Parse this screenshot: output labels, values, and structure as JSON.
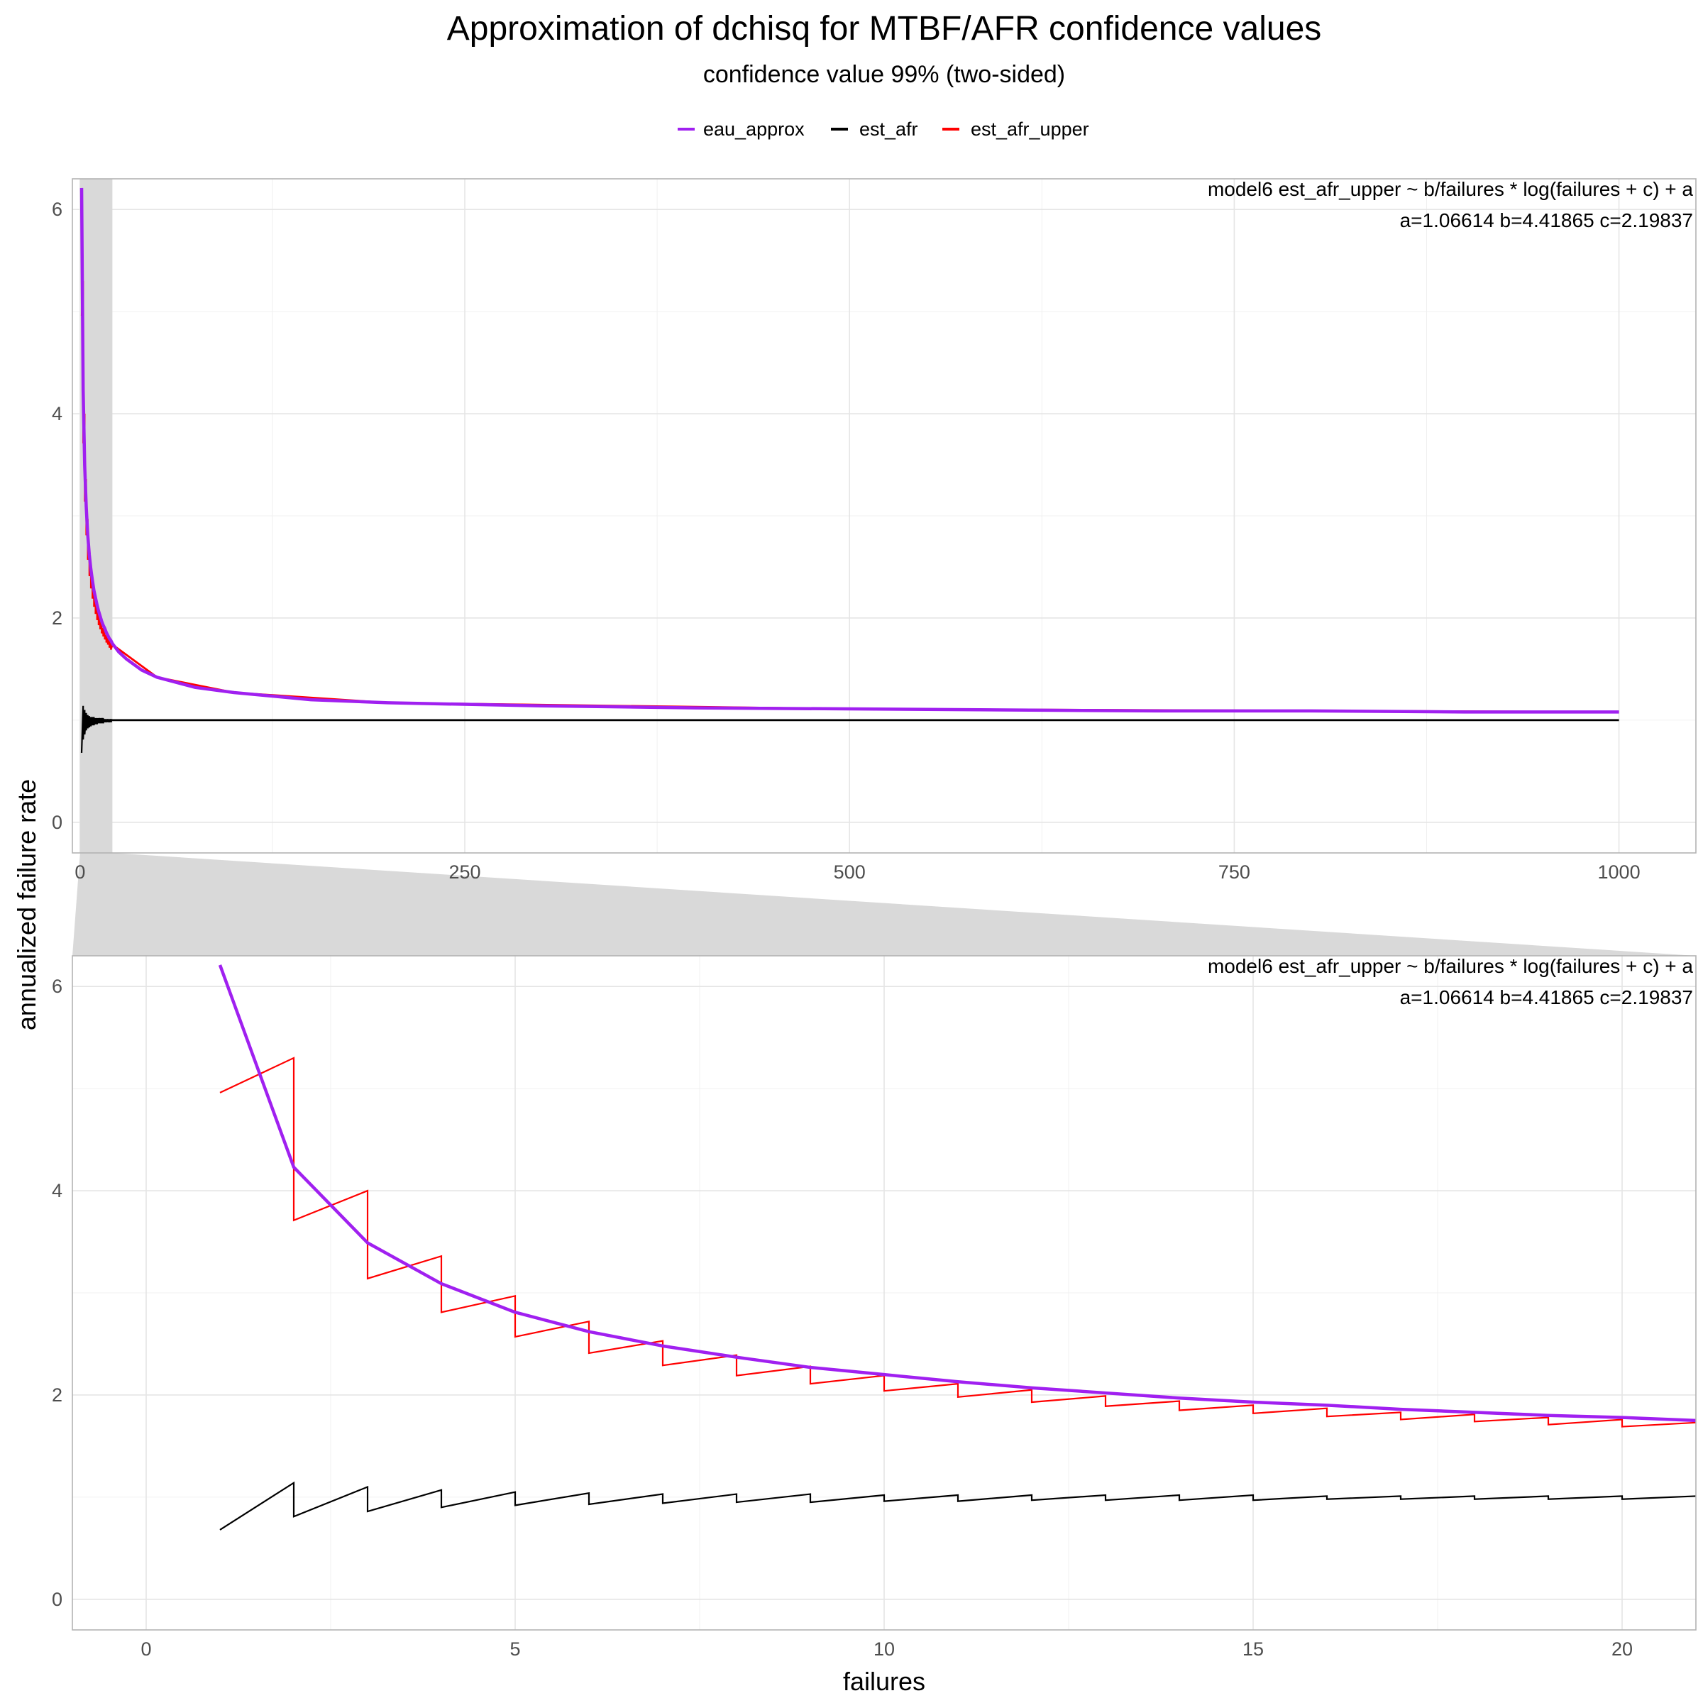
{
  "chart_data": {
    "type": "line",
    "title": "Approximation of dchisq for MTBF/AFR confidence values",
    "subtitle": "confidence value 99% (two-sided)",
    "xlabel": "failures",
    "ylabel": "annualized failure rate",
    "legend": {
      "position": "top",
      "entries": [
        {
          "name": "eau_approx",
          "color": "#a020f0"
        },
        {
          "name": "est_afr",
          "color": "#000000"
        },
        {
          "name": "est_afr_upper",
          "color": "#ff0000"
        }
      ]
    },
    "grid": true,
    "zoom_highlight": {
      "xlim": [
        0,
        21
      ]
    },
    "annotation": {
      "line1": "model6 est_afr_upper ~ b/failures * log(failures + c) + a",
      "line2": "a=1.06614 b=4.41865 c=2.19837"
    },
    "model": {
      "a": 1.06614,
      "b": 4.41865,
      "c": 2.19837
    },
    "panels": [
      {
        "name": "overview",
        "xlim": [
          -5,
          1050
        ],
        "ylim": [
          -0.3,
          6.3
        ],
        "xticks": [
          0,
          250,
          500,
          750,
          1000
        ],
        "xtick_labels": [
          "0",
          "250",
          "500",
          "750",
          "1000"
        ],
        "yticks": [
          0,
          2,
          4,
          6
        ],
        "ytick_labels": [
          "0",
          "2",
          "4",
          "6"
        ],
        "x_range": [
          1,
          1000
        ]
      },
      {
        "name": "zoom",
        "xlim": [
          -1,
          21
        ],
        "ylim": [
          -0.3,
          6.3
        ],
        "xticks": [
          0,
          5,
          10,
          15,
          20
        ],
        "xtick_labels": [
          "0",
          "5",
          "10",
          "15",
          "20"
        ],
        "yticks": [
          0,
          2,
          4,
          6
        ],
        "ytick_labels": [
          "0",
          "2",
          "4",
          "6"
        ],
        "x_range": [
          1,
          21
        ]
      }
    ],
    "series": [
      {
        "name": "eau_approx",
        "color": "#a020f0",
        "x": [
          1,
          2,
          3,
          4,
          5,
          6,
          7,
          8,
          9,
          10,
          11,
          12,
          13,
          14,
          15,
          16,
          17,
          18,
          19,
          20,
          21,
          25,
          30,
          40,
          50,
          75,
          100,
          150,
          200,
          300,
          400,
          500,
          600,
          700,
          800,
          900,
          1000
        ],
        "y": [
          6.21,
          4.23,
          3.49,
          3.09,
          2.81,
          2.62,
          2.48,
          2.37,
          2.27,
          2.2,
          2.13,
          2.07,
          2.02,
          1.97,
          1.93,
          1.9,
          1.86,
          1.83,
          1.8,
          1.78,
          1.75,
          1.67,
          1.6,
          1.49,
          1.42,
          1.32,
          1.27,
          1.2,
          1.17,
          1.14,
          1.12,
          1.11,
          1.1,
          1.09,
          1.09,
          1.08,
          1.08
        ]
      },
      {
        "name": "est_afr",
        "color": "#000000",
        "segments": [
          {
            "x": [
              1,
              2
            ],
            "y": [
              0.68,
              1.14
            ]
          },
          {
            "x": [
              2,
              3
            ],
            "y": [
              0.81,
              1.1
            ]
          },
          {
            "x": [
              3,
              4
            ],
            "y": [
              0.86,
              1.07
            ]
          },
          {
            "x": [
              4,
              5
            ],
            "y": [
              0.9,
              1.05
            ]
          },
          {
            "x": [
              5,
              6
            ],
            "y": [
              0.92,
              1.04
            ]
          },
          {
            "x": [
              6,
              7
            ],
            "y": [
              0.93,
              1.03
            ]
          },
          {
            "x": [
              7,
              8
            ],
            "y": [
              0.94,
              1.03
            ]
          },
          {
            "x": [
              8,
              9
            ],
            "y": [
              0.95,
              1.03
            ]
          },
          {
            "x": [
              9,
              10
            ],
            "y": [
              0.95,
              1.02
            ]
          },
          {
            "x": [
              10,
              11
            ],
            "y": [
              0.96,
              1.02
            ]
          },
          {
            "x": [
              11,
              12
            ],
            "y": [
              0.96,
              1.02
            ]
          },
          {
            "x": [
              12,
              13
            ],
            "y": [
              0.97,
              1.02
            ]
          },
          {
            "x": [
              13,
              14
            ],
            "y": [
              0.97,
              1.02
            ]
          },
          {
            "x": [
              14,
              15
            ],
            "y": [
              0.97,
              1.02
            ]
          },
          {
            "x": [
              15,
              16
            ],
            "y": [
              0.97,
              1.01
            ]
          },
          {
            "x": [
              16,
              17
            ],
            "y": [
              0.98,
              1.01
            ]
          },
          {
            "x": [
              17,
              18
            ],
            "y": [
              0.98,
              1.01
            ]
          },
          {
            "x": [
              18,
              19
            ],
            "y": [
              0.98,
              1.01
            ]
          },
          {
            "x": [
              19,
              20
            ],
            "y": [
              0.98,
              1.01
            ]
          },
          {
            "x": [
              20,
              21
            ],
            "y": [
              0.98,
              1.01
            ]
          }
        ],
        "tail": {
          "x": [
            21,
            50,
            100,
            200,
            500,
            1000
          ],
          "y": [
            1.0,
            1.0,
            1.0,
            1.0,
            1.0,
            1.0
          ]
        }
      },
      {
        "name": "est_afr_upper",
        "color": "#ff0000",
        "segments": [
          {
            "x": [
              1,
              2
            ],
            "y": [
              4.96,
              5.3
            ]
          },
          {
            "x": [
              2,
              3
            ],
            "y": [
              3.71,
              4.0
            ]
          },
          {
            "x": [
              3,
              4
            ],
            "y": [
              3.14,
              3.36
            ]
          },
          {
            "x": [
              4,
              5
            ],
            "y": [
              2.81,
              2.97
            ]
          },
          {
            "x": [
              5,
              6
            ],
            "y": [
              2.57,
              2.72
            ]
          },
          {
            "x": [
              6,
              7
            ],
            "y": [
              2.41,
              2.53
            ]
          },
          {
            "x": [
              7,
              8
            ],
            "y": [
              2.29,
              2.39
            ]
          },
          {
            "x": [
              8,
              9
            ],
            "y": [
              2.19,
              2.28
            ]
          },
          {
            "x": [
              9,
              10
            ],
            "y": [
              2.11,
              2.19
            ]
          },
          {
            "x": [
              10,
              11
            ],
            "y": [
              2.04,
              2.11
            ]
          },
          {
            "x": [
              11,
              12
            ],
            "y": [
              1.98,
              2.05
            ]
          },
          {
            "x": [
              12,
              13
            ],
            "y": [
              1.93,
              1.99
            ]
          },
          {
            "x": [
              13,
              14
            ],
            "y": [
              1.89,
              1.94
            ]
          },
          {
            "x": [
              14,
              15
            ],
            "y": [
              1.85,
              1.9
            ]
          },
          {
            "x": [
              15,
              16
            ],
            "y": [
              1.82,
              1.87
            ]
          },
          {
            "x": [
              16,
              17
            ],
            "y": [
              1.79,
              1.83
            ]
          },
          {
            "x": [
              17,
              18
            ],
            "y": [
              1.76,
              1.81
            ]
          },
          {
            "x": [
              18,
              19
            ],
            "y": [
              1.74,
              1.78
            ]
          },
          {
            "x": [
              19,
              20
            ],
            "y": [
              1.71,
              1.76
            ]
          },
          {
            "x": [
              20,
              21
            ],
            "y": [
              1.69,
              1.73
            ]
          }
        ],
        "tail": {
          "x": [
            21,
            50,
            100,
            200,
            500,
            1000
          ],
          "y": [
            1.74,
            1.42,
            1.27,
            1.17,
            1.11,
            1.08
          ]
        }
      }
    ]
  }
}
